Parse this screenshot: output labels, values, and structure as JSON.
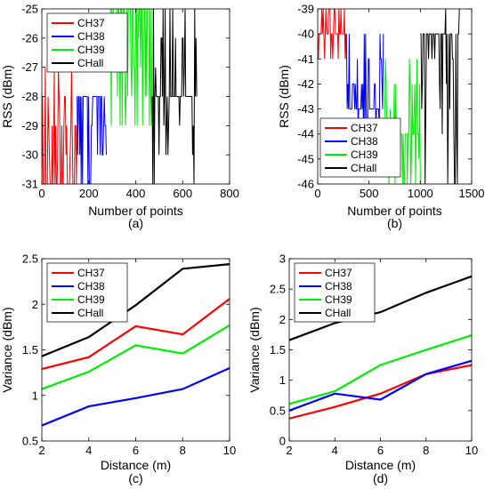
{
  "chart_data": [
    {
      "type": "line",
      "caption": "(a)",
      "xlabel": "Number of points",
      "ylabel": "RSS (dBm)",
      "xlim": [
        0,
        800
      ],
      "ylim": [
        -31,
        -25
      ],
      "xticks": [
        0,
        200,
        400,
        600,
        800
      ],
      "yticks": [
        -31,
        -30,
        -29,
        -28,
        -27,
        -26,
        -25
      ],
      "grid": false,
      "legend": "top-left",
      "series": [
        {
          "name": "CH37",
          "color": "#ff0000",
          "x": [
            0,
            150
          ],
          "base": -31,
          "levels": [
            -31,
            -30,
            -29,
            -28,
            -27
          ]
        },
        {
          "name": "CH38",
          "color": "#0000ff",
          "x": [
            150,
            275
          ],
          "base": -28,
          "levels": [
            -28,
            -29,
            -30,
            -31
          ]
        },
        {
          "name": "CH39",
          "color": "#00ee00",
          "x": [
            290,
            470
          ],
          "base": -25,
          "levels": [
            -25,
            -26,
            -27,
            -28,
            -29
          ]
        },
        {
          "name": "CHall",
          "color": "#000000",
          "x": [
            470,
            660
          ],
          "base": -28,
          "levels": [
            -25,
            -26,
            -27,
            -28,
            -29,
            -30,
            -31
          ]
        }
      ]
    },
    {
      "type": "line",
      "caption": "(b)",
      "xlabel": "Number of points",
      "ylabel": "RSS (dBm)",
      "xlim": [
        0,
        1500
      ],
      "ylim": [
        -46,
        -39
      ],
      "xticks": [
        0,
        500,
        1000,
        1500
      ],
      "yticks": [
        -46,
        -45,
        -44,
        -43,
        -42,
        -41,
        -40,
        -39
      ],
      "grid": false,
      "legend": "bottom-left",
      "series": [
        {
          "name": "CH37",
          "color": "#ff0000",
          "x": [
            0,
            280
          ],
          "base": -40,
          "levels": [
            -39,
            -40,
            -41
          ]
        },
        {
          "name": "CH38",
          "color": "#0000ff",
          "x": [
            280,
            640
          ],
          "base": -43,
          "levels": [
            -40,
            -41,
            -42,
            -43,
            -44
          ]
        },
        {
          "name": "CH39",
          "color": "#00ee00",
          "x": [
            640,
            1000
          ],
          "base": -44,
          "levels": [
            -41,
            -42,
            -43,
            -44,
            -45,
            -46
          ]
        },
        {
          "name": "CHall",
          "color": "#000000",
          "x": [
            1000,
            1380
          ],
          "base": -40,
          "levels": [
            -39,
            -40,
            -41,
            -42,
            -43,
            -44,
            -46
          ]
        }
      ]
    },
    {
      "type": "line",
      "caption": "(c)",
      "xlabel": "Distance (m)",
      "ylabel": "Variance (dBm)",
      "xlim": [
        2,
        10
      ],
      "ylim": [
        0.5,
        2.5
      ],
      "xticks": [
        2,
        4,
        6,
        8,
        10
      ],
      "yticks": [
        0.5,
        1,
        1.5,
        2,
        2.5
      ],
      "grid": false,
      "legend": "top-left",
      "x": [
        2,
        4,
        6,
        8,
        10
      ],
      "series": [
        {
          "name": "CH37",
          "color": "#ff0000",
          "values": [
            1.29,
            1.42,
            1.76,
            1.67,
            2.06
          ]
        },
        {
          "name": "CH38",
          "color": "#0000ff",
          "values": [
            0.67,
            0.88,
            0.97,
            1.07,
            1.3
          ]
        },
        {
          "name": "CH39",
          "color": "#00ee00",
          "values": [
            1.07,
            1.26,
            1.55,
            1.46,
            1.77
          ]
        },
        {
          "name": "CHall",
          "color": "#000000",
          "values": [
            1.43,
            1.64,
            1.99,
            2.39,
            2.44
          ]
        }
      ]
    },
    {
      "type": "line",
      "caption": "(d)",
      "xlabel": "Distance (m)",
      "ylabel": "Variance (dBm)",
      "xlim": [
        2,
        10
      ],
      "ylim": [
        0,
        3
      ],
      "xticks": [
        2,
        4,
        6,
        8,
        10
      ],
      "yticks": [
        0,
        0.5,
        1,
        1.5,
        2,
        2.5,
        3
      ],
      "grid": false,
      "legend": "top-left",
      "x": [
        2,
        4,
        6,
        8,
        10
      ],
      "series": [
        {
          "name": "CH37",
          "color": "#ff0000",
          "values": [
            0.37,
            0.56,
            0.78,
            1.1,
            1.25
          ]
        },
        {
          "name": "CH38",
          "color": "#0000ff",
          "values": [
            0.5,
            0.78,
            0.68,
            1.1,
            1.32
          ]
        },
        {
          "name": "CH39",
          "color": "#00ee00",
          "values": [
            0.61,
            0.82,
            1.25,
            1.5,
            1.74
          ]
        },
        {
          "name": "CHall",
          "color": "#000000",
          "values": [
            1.66,
            1.94,
            2.12,
            2.44,
            2.71
          ]
        }
      ]
    }
  ]
}
